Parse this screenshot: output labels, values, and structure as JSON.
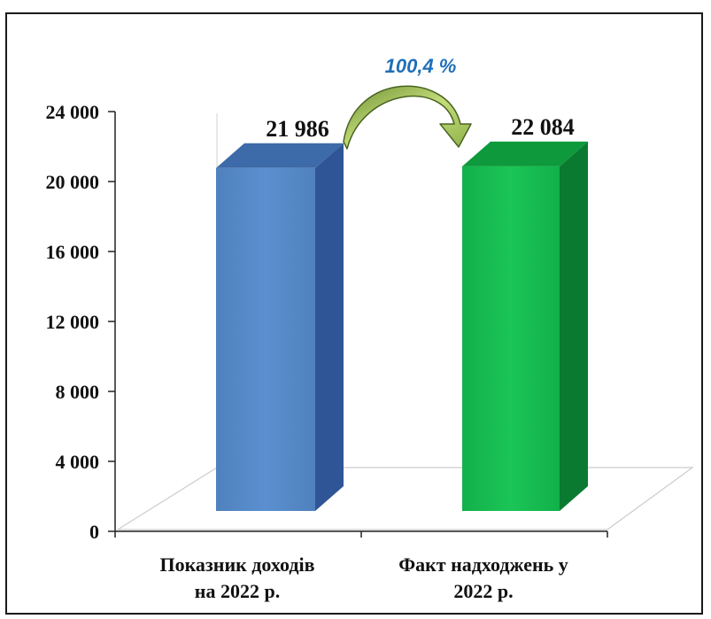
{
  "chart_data": {
    "type": "bar",
    "categories": [
      [
        "Показник доходів",
        "на 2022 р."
      ],
      [
        "Факт надходжень у",
        "2022 р."
      ]
    ],
    "values": [
      21986,
      22084
    ],
    "data_labels": [
      "21 986",
      "22 084"
    ],
    "ylim": [
      0,
      24000
    ],
    "yticks": [
      0,
      4000,
      8000,
      12000,
      16000,
      20000,
      24000
    ],
    "ytick_labels": [
      "0",
      "4 000",
      "8 000",
      "12 000",
      "16 000",
      "20 000",
      "24 000"
    ],
    "ratio_label": "100,4 %",
    "grid": false,
    "bar_style": "3d",
    "colors": {
      "bar1_front": "#4f81bd",
      "bar1_side": "#2f5597",
      "bar1_top": "#3d6aa8",
      "bar2_front": "#12b04a",
      "bar2_side": "#0a7a30",
      "bar2_top": "#0e9a3c",
      "arrow": "#9bbb59",
      "ratio_text": "#1f6fb8"
    }
  }
}
